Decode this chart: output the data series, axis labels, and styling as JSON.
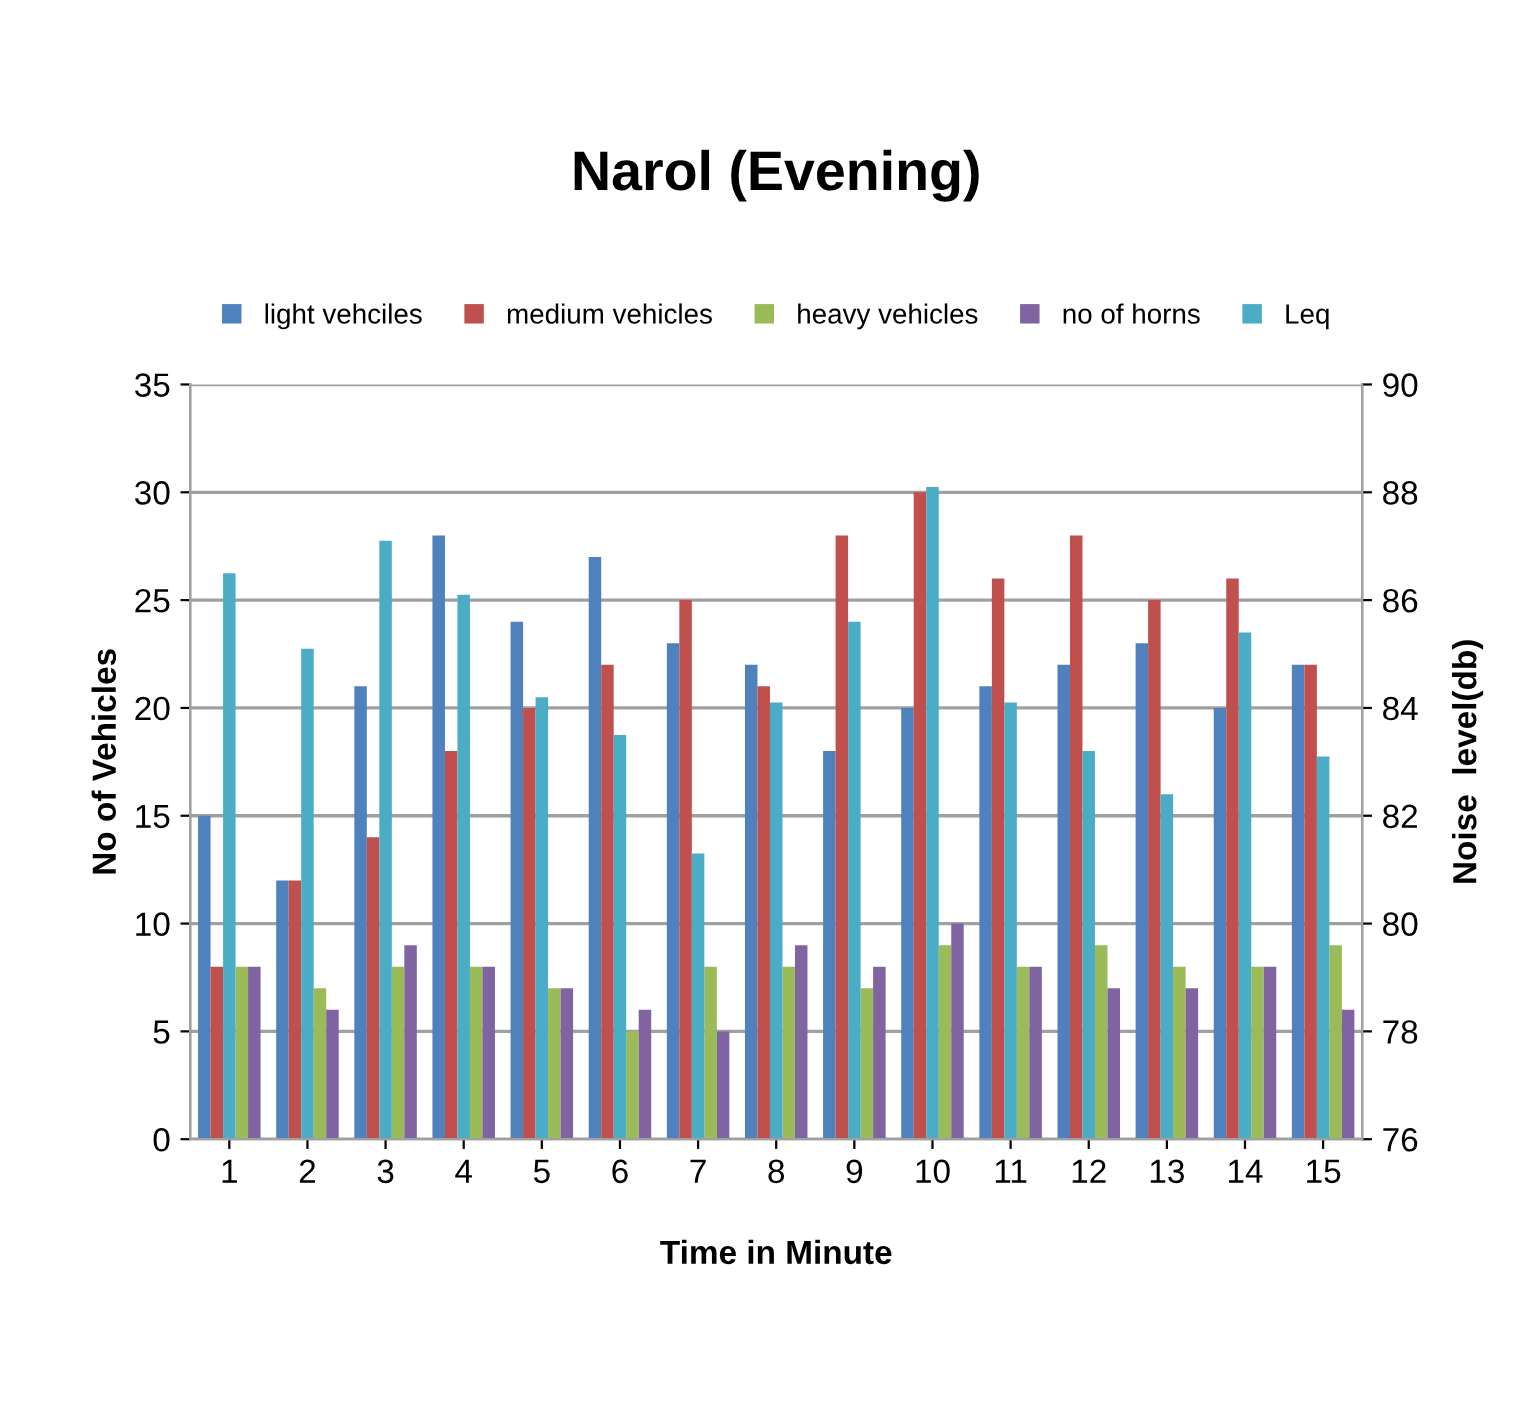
{
  "chart_data": {
    "type": "bar",
    "title": "Narol (Evening)",
    "xlabel": "Time in Minute",
    "ylabel": "No of Vehicles",
    "y2label": "Noise  level(db)",
    "categories": [
      "1",
      "2",
      "3",
      "4",
      "5",
      "6",
      "7",
      "8",
      "9",
      "10",
      "11",
      "12",
      "13",
      "14",
      "15"
    ],
    "series": [
      {
        "name": "light vehciles",
        "color": "#4f81bd",
        "values": [
          15,
          12,
          21,
          28,
          24,
          27,
          23,
          22,
          18,
          20,
          21,
          22,
          23,
          20,
          22
        ]
      },
      {
        "name": "medium vehicles",
        "color": "#c0504d",
        "values": [
          8,
          12,
          14,
          18,
          20,
          22,
          25,
          21,
          28,
          30,
          26,
          28,
          25,
          26,
          22
        ]
      },
      {
        "name": "heavy vehicles",
        "color": "#9bbb59",
        "values": [
          8,
          7,
          8,
          8,
          7,
          5,
          8,
          8,
          7,
          9,
          8,
          9,
          8,
          8,
          9
        ]
      },
      {
        "name": "no of horns",
        "color": "#8064a2",
        "values": [
          8,
          6,
          9,
          8,
          7,
          6,
          5,
          9,
          8,
          10,
          8,
          7,
          7,
          8,
          6
        ]
      },
      {
        "name": "Leq",
        "color": "#4bacc6",
        "axis": "y2",
        "values": [
          86.5,
          85.1,
          87.1,
          86.1,
          84.2,
          83.5,
          81.3,
          84.1,
          85.6,
          88.1,
          84.1,
          83.2,
          82.4,
          85.4,
          83.1
        ]
      }
    ],
    "ylim": [
      0,
      35
    ],
    "yticks": [
      0,
      5,
      10,
      15,
      20,
      25,
      30,
      35
    ],
    "y2lim": [
      76,
      90
    ],
    "y2ticks": [
      76,
      78,
      80,
      82,
      84,
      86,
      88,
      90
    ],
    "grid": "y",
    "legend": "top"
  }
}
